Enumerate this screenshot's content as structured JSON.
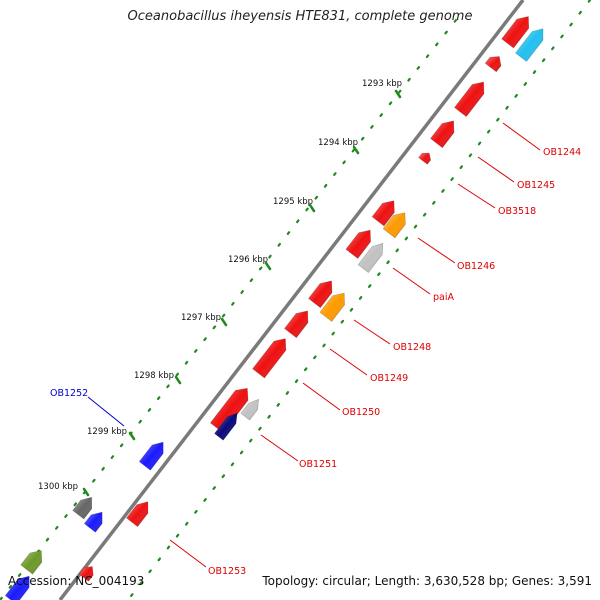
{
  "title": "Oceanobacillus iheyensis HTE831, complete genome",
  "footer": {
    "accession": "Accession: NC_004193",
    "summary": "Topology: circular; Length: 3,630,528 bp; Genes: 3,591"
  },
  "colors": {
    "backbone": "#7a7a7a",
    "tick_dots": "#1f8a1f",
    "red": "#ee1111",
    "orange": "#ff9a00",
    "blue": "#1a1aff",
    "navy": "#0a0a7a",
    "cyan": "#22c0f0",
    "gray": "#666666",
    "silver": "#c2c2c2",
    "olive": "#6b9a2a",
    "label_red": "#dd0000",
    "label_blue": "#0000cc"
  },
  "kbp_labels": [
    "1293 kbp",
    "1294 kbp",
    "1295 kbp",
    "1296 kbp",
    "1297 kbp",
    "1298 kbp",
    "1299 kbp",
    "1300 kbp"
  ],
  "gene_labels": [
    {
      "text": "OB1244",
      "color": "red"
    },
    {
      "text": "OB1245",
      "color": "red"
    },
    {
      "text": "OB3518",
      "color": "red"
    },
    {
      "text": "OB1246",
      "color": "red"
    },
    {
      "text": "paiA",
      "color": "red"
    },
    {
      "text": "OB1248",
      "color": "red"
    },
    {
      "text": "OB1249",
      "color": "red"
    },
    {
      "text": "OB1250",
      "color": "red"
    },
    {
      "text": "OB1251",
      "color": "red"
    },
    {
      "text": "OB1252",
      "color": "blue"
    },
    {
      "text": "OB1253",
      "color": "red"
    }
  ]
}
